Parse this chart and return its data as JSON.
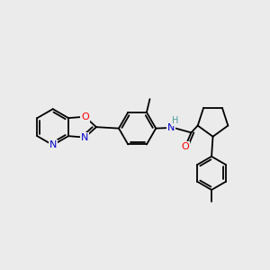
{
  "background_color": "#ebebeb",
  "atom_colors": {
    "C": "#000000",
    "N": "#0000cc",
    "O": "#ff0000",
    "H": "#4a9999"
  },
  "font_size": 8,
  "bond_lw": 1.3,
  "figsize": [
    3.0,
    3.0
  ],
  "dpi": 100
}
